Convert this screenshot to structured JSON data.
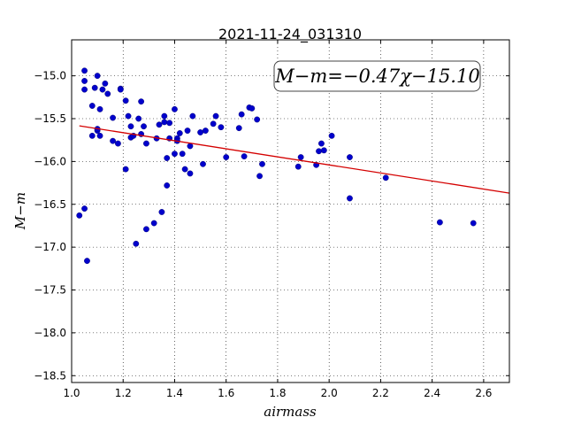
{
  "chart_data": {
    "type": "scatter",
    "title": "2021-11-24_031310",
    "xlabel": "airmass",
    "ylabel": "M−m",
    "xlim": [
      1.0,
      2.7
    ],
    "ylim": [
      -18.58,
      -14.58
    ],
    "xticks": [
      "1.0",
      "1.2",
      "1.4",
      "1.6",
      "1.8",
      "2.0",
      "2.2",
      "2.4",
      "2.6"
    ],
    "yticks": [
      "−15.0",
      "−15.5",
      "−16.0",
      "−16.5",
      "−17.0",
      "−17.5",
      "−18.0",
      "−18.5"
    ],
    "grid": true,
    "annotation": "M−m=−0.47χ−15.10",
    "fit": {
      "slope": -0.47,
      "intercept": -15.1,
      "x_range": [
        1.03,
        2.7
      ],
      "color": "#d40000"
    },
    "point_color": "#0000cc",
    "points": [
      [
        1.03,
        -16.63
      ],
      [
        1.05,
        -16.55
      ],
      [
        1.05,
        -14.94
      ],
      [
        1.05,
        -15.06
      ],
      [
        1.05,
        -15.16
      ],
      [
        1.06,
        -17.16
      ],
      [
        1.08,
        -15.7
      ],
      [
        1.08,
        -15.35
      ],
      [
        1.09,
        -15.14
      ],
      [
        1.1,
        -15.0
      ],
      [
        1.1,
        -15.64
      ],
      [
        1.1,
        -15.62
      ],
      [
        1.11,
        -15.7
      ],
      [
        1.11,
        -15.39
      ],
      [
        1.12,
        -15.16
      ],
      [
        1.13,
        -15.09
      ],
      [
        1.14,
        -15.21
      ],
      [
        1.16,
        -15.49
      ],
      [
        1.16,
        -15.76
      ],
      [
        1.18,
        -15.79
      ],
      [
        1.19,
        -15.15
      ],
      [
        1.19,
        -15.16
      ],
      [
        1.21,
        -15.29
      ],
      [
        1.21,
        -16.09
      ],
      [
        1.22,
        -15.47
      ],
      [
        1.23,
        -15.72
      ],
      [
        1.23,
        -15.59
      ],
      [
        1.24,
        -15.7
      ],
      [
        1.25,
        -16.96
      ],
      [
        1.26,
        -15.5
      ],
      [
        1.27,
        -15.3
      ],
      [
        1.27,
        -15.68
      ],
      [
        1.28,
        -15.59
      ],
      [
        1.29,
        -15.79
      ],
      [
        1.29,
        -16.79
      ],
      [
        1.32,
        -16.72
      ],
      [
        1.33,
        -15.73
      ],
      [
        1.34,
        -15.57
      ],
      [
        1.35,
        -16.59
      ],
      [
        1.36,
        -15.47
      ],
      [
        1.36,
        -15.54
      ],
      [
        1.37,
        -15.96
      ],
      [
        1.37,
        -16.28
      ],
      [
        1.38,
        -15.55
      ],
      [
        1.38,
        -15.73
      ],
      [
        1.4,
        -15.39
      ],
      [
        1.4,
        -15.91
      ],
      [
        1.41,
        -15.73
      ],
      [
        1.41,
        -15.76
      ],
      [
        1.42,
        -15.67
      ],
      [
        1.43,
        -15.91
      ],
      [
        1.44,
        -16.09
      ],
      [
        1.45,
        -15.64
      ],
      [
        1.46,
        -15.82
      ],
      [
        1.46,
        -16.14
      ],
      [
        1.47,
        -15.47
      ],
      [
        1.5,
        -15.66
      ],
      [
        1.51,
        -16.03
      ],
      [
        1.52,
        -15.64
      ],
      [
        1.55,
        -15.56
      ],
      [
        1.56,
        -15.47
      ],
      [
        1.58,
        -15.6
      ],
      [
        1.6,
        -15.95
      ],
      [
        1.65,
        -15.61
      ],
      [
        1.66,
        -15.45
      ],
      [
        1.67,
        -15.94
      ],
      [
        1.69,
        -15.37
      ],
      [
        1.7,
        -15.38
      ],
      [
        1.72,
        -15.51
      ],
      [
        1.73,
        -16.17
      ],
      [
        1.74,
        -16.03
      ],
      [
        1.88,
        -16.06
      ],
      [
        1.89,
        -15.95
      ],
      [
        1.95,
        -16.04
      ],
      [
        1.96,
        -15.88
      ],
      [
        1.97,
        -15.79
      ],
      [
        1.98,
        -15.87
      ],
      [
        2.01,
        -15.7
      ],
      [
        2.08,
        -15.95
      ],
      [
        2.08,
        -16.43
      ],
      [
        2.22,
        -16.19
      ],
      [
        2.43,
        -16.71
      ],
      [
        2.56,
        -16.72
      ]
    ]
  }
}
